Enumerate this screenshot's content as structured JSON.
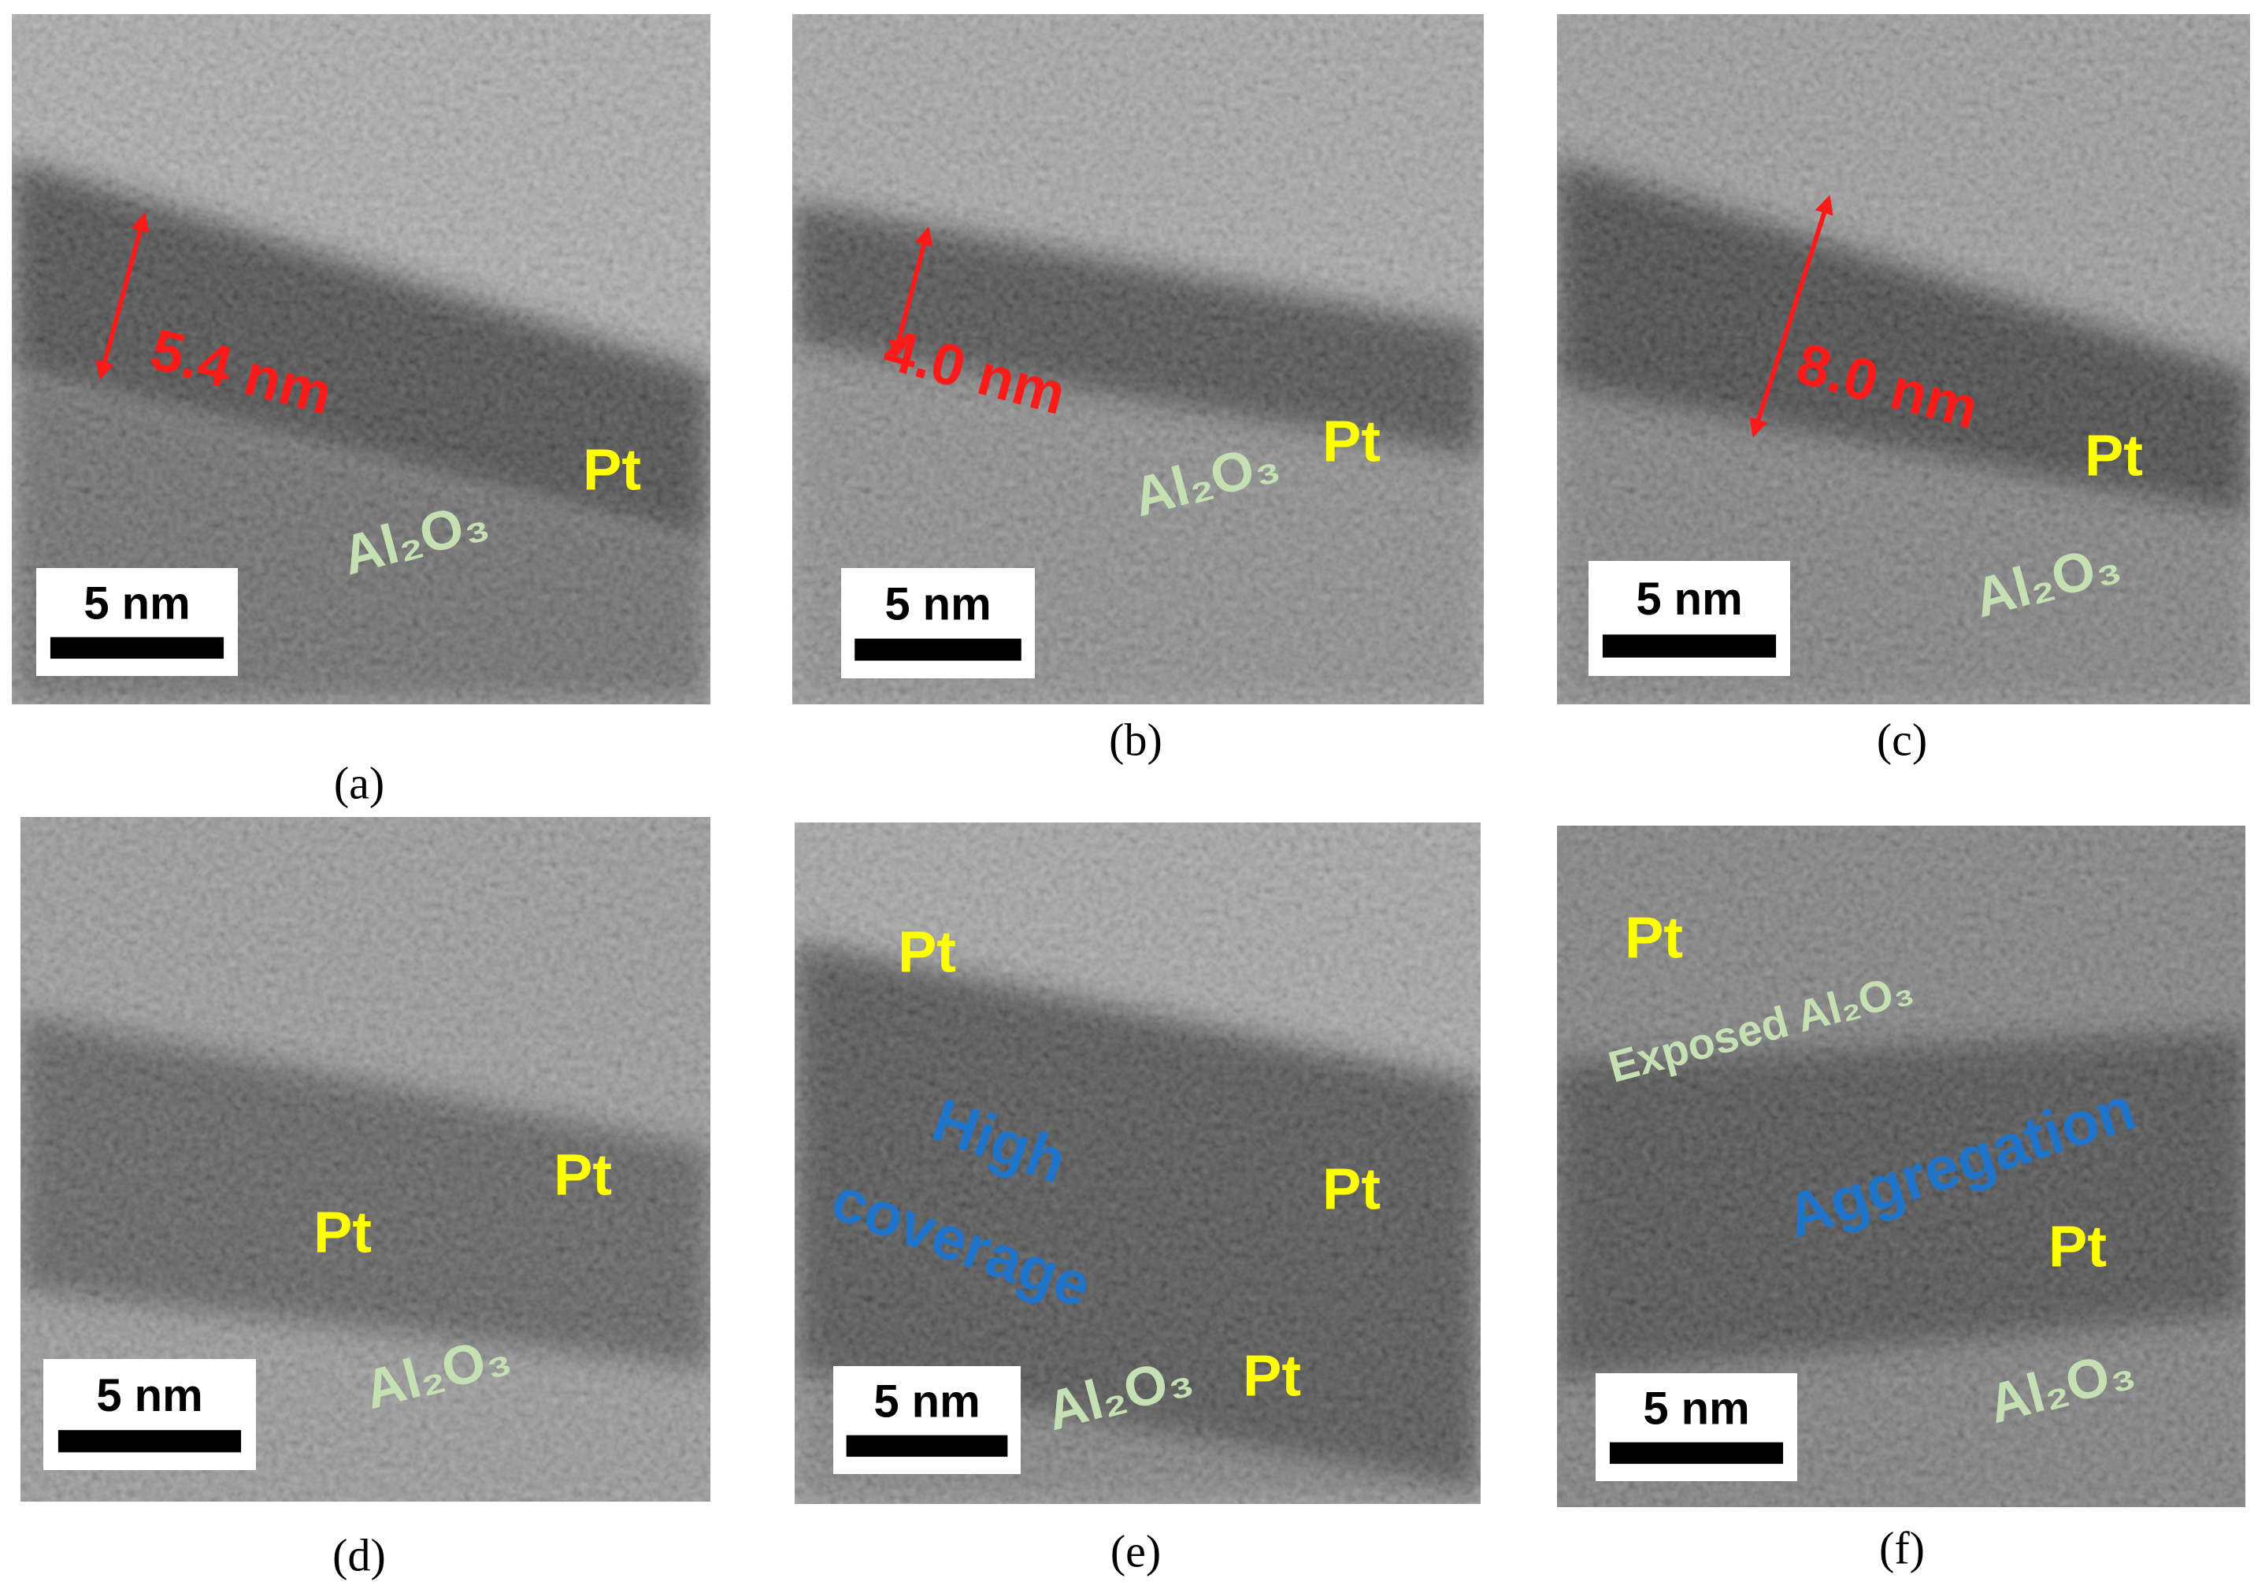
{
  "panels": [
    {
      "caption": "(a)",
      "scale_bar": "5 nm",
      "measurement": "5.4 nm",
      "labels": [
        "Pt",
        "Al₂O₃"
      ]
    },
    {
      "caption": "(b)",
      "scale_bar": "5 nm",
      "measurement": "4.0 nm",
      "labels": [
        "Pt",
        "Al₂O₃"
      ]
    },
    {
      "caption": "(c)",
      "scale_bar": "5 nm",
      "measurement": "8.0 nm",
      "labels": [
        "Pt",
        "Al₂O₃"
      ]
    },
    {
      "caption": "(d)",
      "scale_bar": "5 nm",
      "labels": [
        "Pt",
        "Pt",
        "Al₂O₃"
      ]
    },
    {
      "caption": "(e)",
      "scale_bar": "5 nm",
      "labels": [
        "Pt",
        "High",
        "coverage",
        "Pt",
        "Pt",
        "Al₂O₃"
      ]
    },
    {
      "caption": "(f)",
      "scale_bar": "5 nm",
      "labels": [
        "Pt",
        "Exposed Al₂O₃",
        "Aggregation",
        "Pt",
        "Al₂O₃"
      ]
    }
  ]
}
